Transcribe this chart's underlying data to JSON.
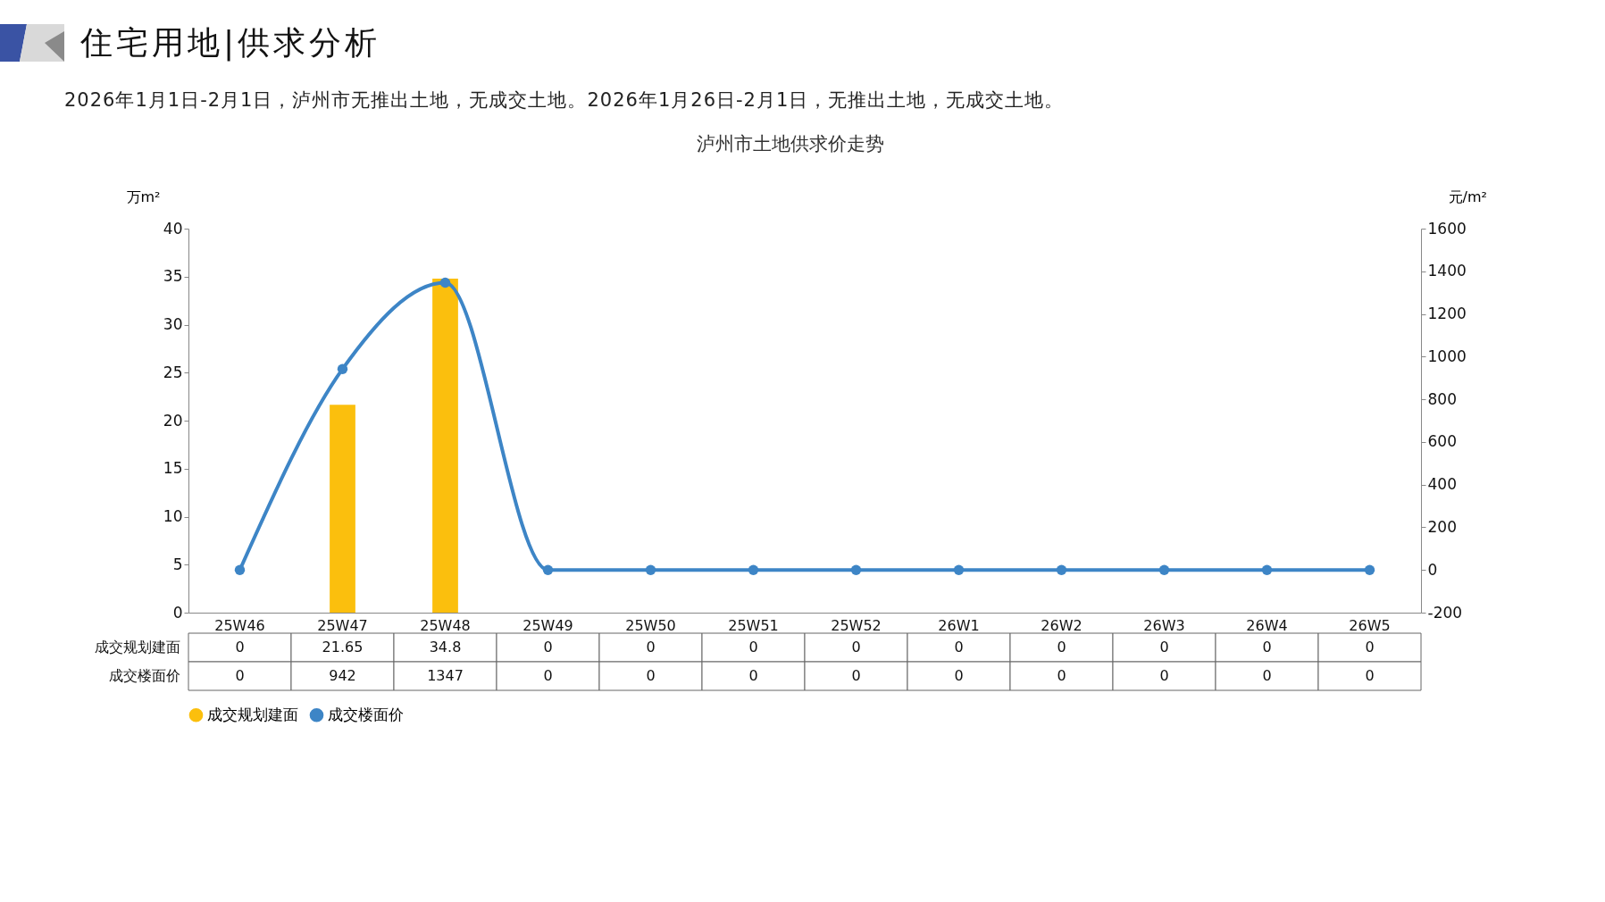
{
  "chart_data": {
    "type": "bar",
    "title": "泸州市土地供求价走势",
    "annotations": [
      "住宅用地|供求分析",
      "2026年1月1日-2月1日，泸州市无推出土地，无成交土地。2026年1月26日-2月1日，无推出土地，无成交土地。"
    ],
    "categories": [
      "25W46",
      "25W47",
      "25W48",
      "25W49",
      "25W50",
      "25W51",
      "25W52",
      "26W1",
      "26W2",
      "26W3",
      "26W4",
      "26W5"
    ],
    "series": [
      {
        "name": "成交规划建面",
        "color": "#fbbf0d",
        "values": [
          0,
          21.65,
          34.8,
          0,
          0,
          0,
          0,
          0,
          0,
          0,
          0,
          0
        ]
      },
      {
        "name": "成交楼面价",
        "type": "line",
        "axis": "y2",
        "color": "#3d85c6",
        "values": [
          0,
          942,
          1347,
          0,
          0,
          0,
          0,
          0,
          0,
          0,
          0,
          0
        ]
      }
    ],
    "ylabel": "万m²",
    "y2label": "元/m²",
    "ylim": [
      0,
      40
    ],
    "yticks": [
      0,
      5,
      10,
      15,
      20,
      25,
      30,
      35,
      40
    ],
    "y2lim": [
      -200,
      1600
    ],
    "y2ticks": [
      -200,
      0,
      200,
      400,
      600,
      800,
      1000,
      1200,
      1400,
      1600
    ],
    "legend": "bottom",
    "marker": "circle",
    "data_labels": true
  }
}
